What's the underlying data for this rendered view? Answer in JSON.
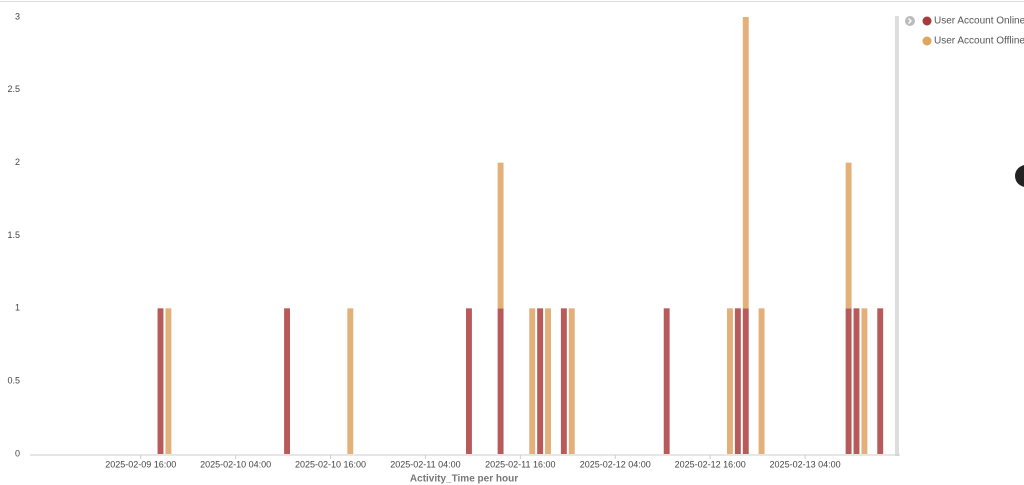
{
  "chart_data": {
    "type": "bar",
    "stacked": true,
    "x_label": "Activity_Time per hour",
    "x": [
      "2025-02-09 18:00",
      "2025-02-09 19:00",
      "2025-02-10 10:00",
      "2025-02-10 18:00",
      "2025-02-11 09:00",
      "2025-02-11 13:00",
      "2025-02-11 17:00",
      "2025-02-11 18:00",
      "2025-02-11 19:00",
      "2025-02-11 21:00",
      "2025-02-11 22:00",
      "2025-02-12 10:00",
      "2025-02-12 18:00",
      "2025-02-12 19:00",
      "2025-02-12 20:00",
      "2025-02-12 22:00",
      "2025-02-13 09:00",
      "2025-02-13 10:00",
      "2025-02-13 11:00",
      "2025-02-13 13:00"
    ],
    "series": [
      {
        "name": "User Account Online",
        "color": "#b85a5a",
        "legend_color": "#a83a3a",
        "values": [
          1,
          0,
          1,
          0,
          1,
          1,
          0,
          1,
          0,
          1,
          0,
          1,
          0,
          1,
          1,
          0,
          1,
          1,
          0,
          1
        ]
      },
      {
        "name": "User Account Offline",
        "color": "#e3b07a",
        "legend_color": "#e0a65e",
        "values": [
          0,
          1,
          0,
          1,
          0,
          1,
          1,
          0,
          1,
          0,
          1,
          0,
          1,
          0,
          2,
          1,
          1,
          0,
          1,
          0
        ]
      }
    ],
    "xlim": [
      "2025-02-09 02:00",
      "2025-02-13 16:00"
    ],
    "xticks": [
      "2025-02-09 16:00",
      "2025-02-10 04:00",
      "2025-02-10 16:00",
      "2025-02-11 04:00",
      "2025-02-11 16:00",
      "2025-02-12 04:00",
      "2025-02-12 16:00",
      "2025-02-13 04:00"
    ],
    "ylim": [
      0,
      3
    ],
    "yticks": [
      0,
      0.5,
      1,
      1.5,
      2,
      2.5,
      3
    ],
    "grid": false
  }
}
